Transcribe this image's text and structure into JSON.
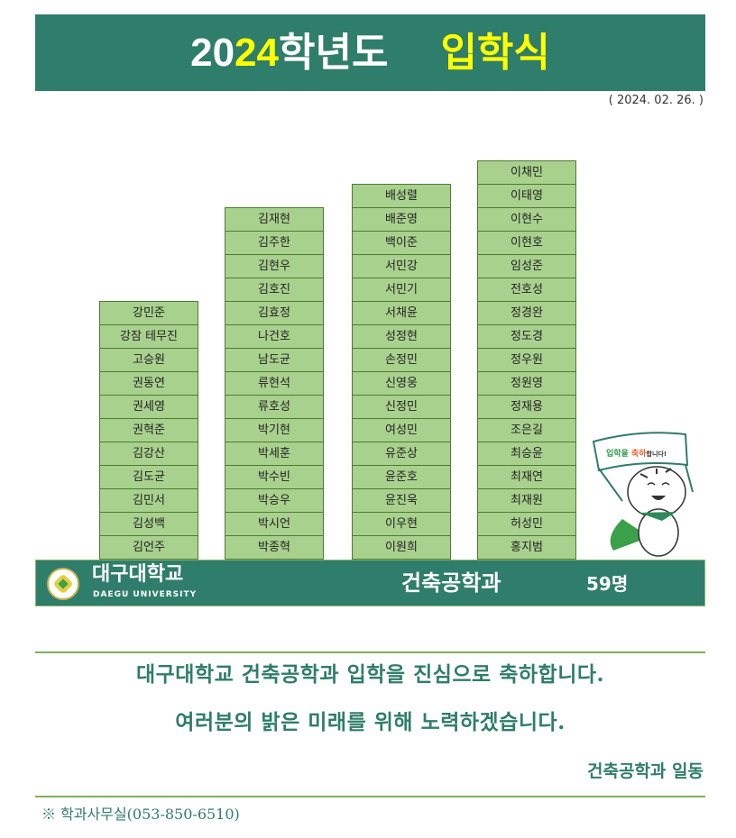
{
  "header": {
    "title_part1": "20",
    "title_highlight": "24",
    "title_part2": "학년도",
    "title_event": "입학식"
  },
  "date": "( 2024. 02. 26. )",
  "columns": [
    [
      "강민준",
      "강잠 테무진",
      "고승원",
      "권동연",
      "권세영",
      "권혁준",
      "김강산",
      "김도균",
      "김민서",
      "김성백",
      "김언주"
    ],
    [
      "김재현",
      "김주한",
      "김현우",
      "김호진",
      "김효정",
      "나건호",
      "남도균",
      "류현석",
      "류호성",
      "박기현",
      "박세훈",
      "박수빈",
      "박승우",
      "박시언",
      "박종혁"
    ],
    [
      "배성렬",
      "배준영",
      "백이준",
      "서민강",
      "서민기",
      "서채윤",
      "성정현",
      "손정민",
      "신영웅",
      "신정민",
      "여성민",
      "유준상",
      "윤준호",
      "윤진욱",
      "이우현",
      "이원희"
    ],
    [
      "이채민",
      "이태영",
      "이현수",
      "이현호",
      "임성준",
      "전호성",
      "정경완",
      "정도경",
      "정우원",
      "정원영",
      "정재용",
      "조은길",
      "최승윤",
      "최재연",
      "최재원",
      "허성민",
      "홍지범"
    ]
  ],
  "mascot": {
    "banner_text": "입학을 축하합니다!",
    "icon": "tiger-mascot"
  },
  "banner": {
    "logo_kr": "대구대학교",
    "logo_en": "DAEGU UNIVERSITY",
    "department": "건축공학과",
    "count": "59명"
  },
  "message": {
    "line1": "대구대학교 건축공학과 입학을 진심으로 축하합니다.",
    "line2": "여러분의 밝은 미래를 위해 노력하겠습니다.",
    "signature": "건축공학과 일동"
  },
  "footer": "※ 학과사무실(053-850-6510)",
  "colors": {
    "header_bg": "#2f7d6b",
    "cell_bg": "#a9d18e",
    "highlight": "#ffff00",
    "text_green": "#2f7d6b"
  }
}
